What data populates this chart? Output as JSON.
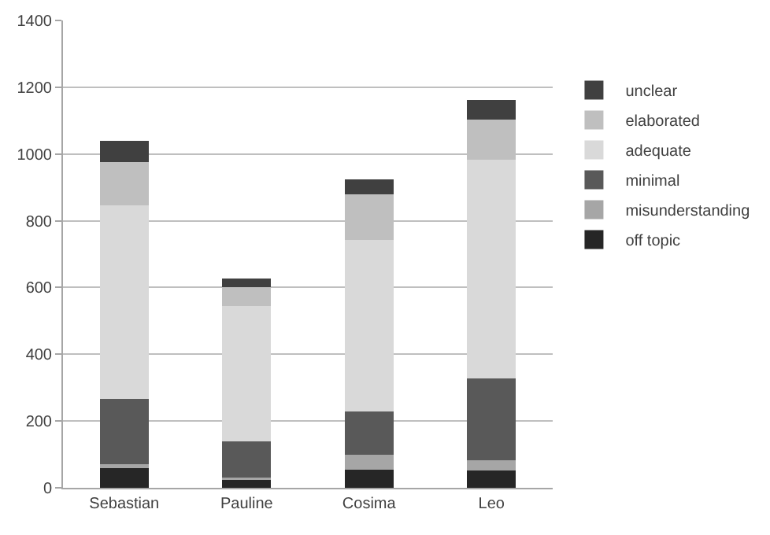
{
  "chart_data": {
    "type": "bar",
    "stacked": true,
    "categories": [
      "Sebastian",
      "Pauline",
      "Cosima",
      "Leo"
    ],
    "series": [
      {
        "name": "off topic",
        "color": "#262626",
        "values": [
          58,
          26,
          54,
          51
        ]
      },
      {
        "name": "misunderstanding",
        "color": "#a6a6a6",
        "values": [
          12,
          4,
          44,
          31
        ]
      },
      {
        "name": "minimal",
        "color": "#595959",
        "values": [
          196,
          108,
          131,
          245
        ]
      },
      {
        "name": "adequate",
        "color": "#d9d9d9",
        "values": [
          579,
          407,
          513,
          655
        ]
      },
      {
        "name": "elaborated",
        "color": "#bfbfbf",
        "values": [
          131,
          56,
          138,
          121
        ]
      },
      {
        "name": "unclear",
        "color": "#404040",
        "values": [
          64,
          27,
          44,
          58
        ]
      }
    ],
    "ylim": [
      0,
      1400
    ],
    "yticks": [
      0,
      200,
      400,
      600,
      800,
      1000,
      1200,
      1400
    ],
    "grid": "y",
    "legend": "right"
  }
}
